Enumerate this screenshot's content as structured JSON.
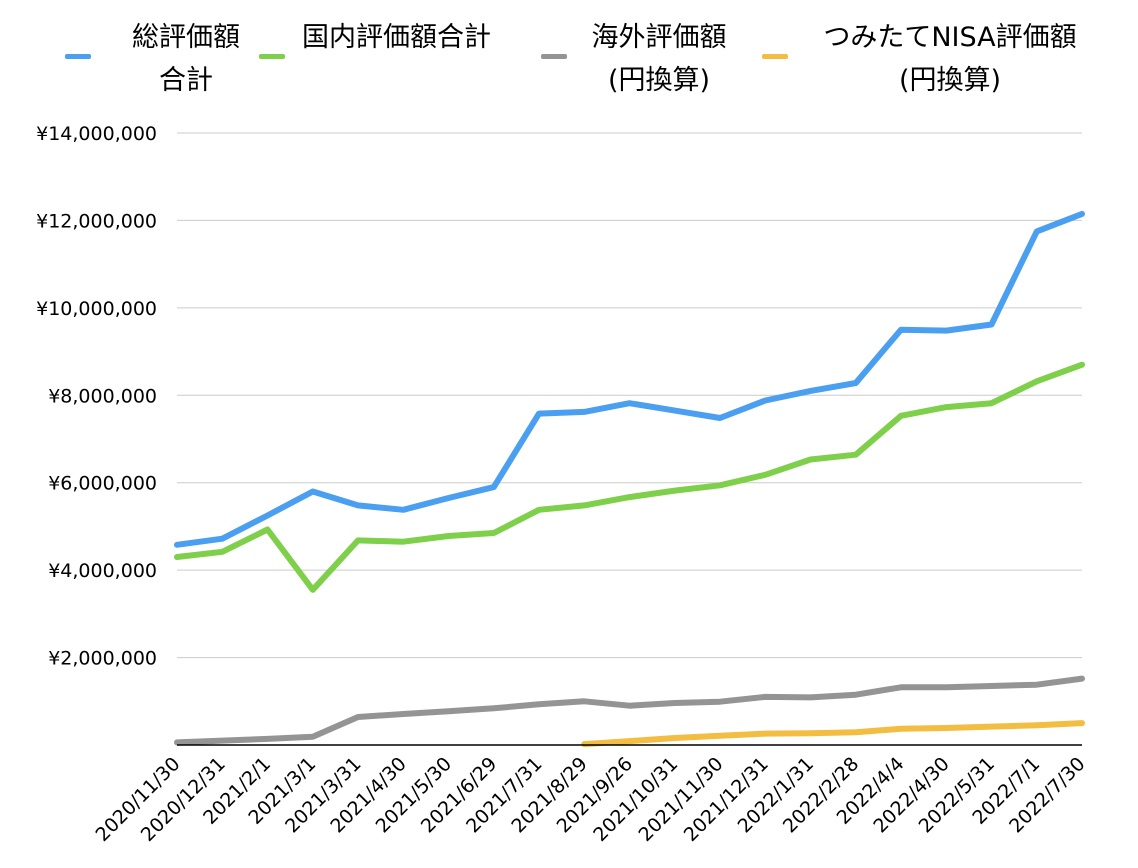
{
  "chart_data": {
    "type": "line",
    "title": "",
    "xlabel": "",
    "ylabel": "",
    "ylim": [
      0,
      14000000
    ],
    "y_ticks": [
      "¥2,000,000",
      "¥4,000,000",
      "¥6,000,000",
      "¥8,000,000",
      "¥10,000,000",
      "¥12,000,000",
      "¥14,000,000"
    ],
    "y_tick_values": [
      2000000,
      4000000,
      6000000,
      8000000,
      10000000,
      12000000,
      14000000
    ],
    "grid": true,
    "legend_position": "top",
    "categories": [
      "2020/11/30",
      "2020/12/31",
      "2021/2/1",
      "2021/3/1",
      "2021/3/31",
      "2021/4/30",
      "2021/5/30",
      "2021/6/29",
      "2021/7/31",
      "2021/8/29",
      "2021/9/26",
      "2021/10/31",
      "2021/11/30",
      "2021/12/31",
      "2022/1/31",
      "2022/2/28",
      "2022/4/4",
      "2022/4/30",
      "2022/5/31",
      "2022/7/1",
      "2022/7/30"
    ],
    "series": [
      {
        "name": "総評価額合計",
        "legend_lines": [
          "総評価額",
          "合計"
        ],
        "color": "#4a9ff0",
        "values": [
          4580000,
          4720000,
          5250000,
          5800000,
          5480000,
          5380000,
          5650000,
          5900000,
          7580000,
          7620000,
          7820000,
          7650000,
          7480000,
          7880000,
          8100000,
          8280000,
          9500000,
          9480000,
          9620000,
          11750000,
          12150000
        ]
      },
      {
        "name": "国内評価額合計",
        "legend_lines": [
          "国内評価額合計"
        ],
        "color": "#7ed04b",
        "values": [
          4300000,
          4420000,
          4930000,
          3550000,
          4680000,
          4650000,
          4780000,
          4850000,
          5380000,
          5480000,
          5670000,
          5820000,
          5940000,
          6180000,
          6530000,
          6640000,
          7530000,
          7730000,
          7820000,
          8320000,
          8700000
        ]
      },
      {
        "name": "海外評価額(円換算)",
        "legend_lines": [
          "海外評価額",
          "(円換算)"
        ],
        "color": "#949494",
        "values": [
          60000,
          100000,
          140000,
          190000,
          640000,
          710000,
          770000,
          840000,
          930000,
          1000000,
          900000,
          960000,
          990000,
          1100000,
          1090000,
          1150000,
          1320000,
          1320000,
          1350000,
          1380000,
          1520000
        ]
      },
      {
        "name": "つみたてNISA評価額(円換算)",
        "legend_lines": [
          "つみたてNISA評価額",
          "(円換算)"
        ],
        "color": "#f2bd41",
        "values": [
          null,
          null,
          null,
          null,
          null,
          null,
          null,
          null,
          null,
          20000,
          90000,
          160000,
          210000,
          260000,
          270000,
          290000,
          370000,
          390000,
          420000,
          450000,
          500000
        ]
      }
    ]
  }
}
